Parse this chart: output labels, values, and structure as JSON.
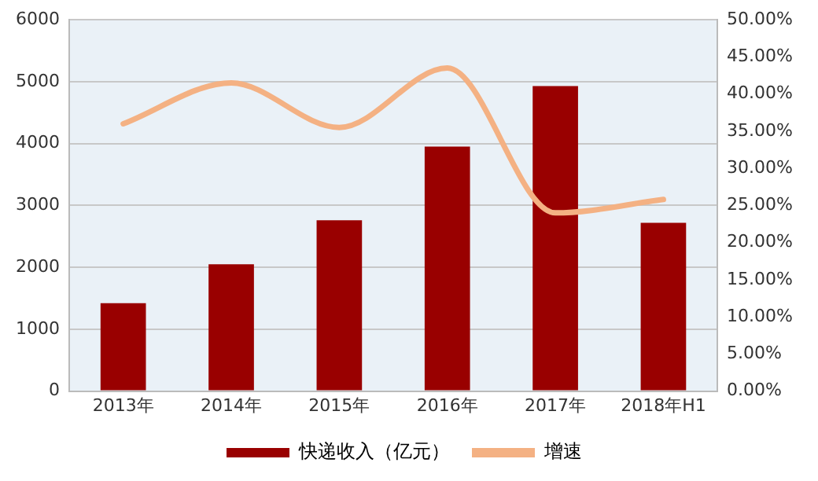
{
  "chart_data": {
    "type": "bar",
    "categories": [
      "2013年",
      "2014年",
      "2015年",
      "2016年",
      "2017年",
      "2018年H1"
    ],
    "series": [
      {
        "name": "快递收入（亿元）",
        "color": "#990000",
        "values": [
          1420,
          2050,
          2760,
          3950,
          4930,
          2720
        ]
      },
      {
        "name": "增速",
        "type": "line",
        "axis": "y2",
        "color": "#f4b183",
        "values": [
          36.0,
          41.5,
          35.5,
          43.5,
          24.0,
          25.8
        ]
      }
    ],
    "ylim": [
      0,
      6000
    ],
    "yticks": [
      0,
      1000,
      2000,
      3000,
      4000,
      5000,
      6000
    ],
    "y2lim": [
      0,
      50
    ],
    "y2ticks": [
      {
        "value": 0,
        "label": "0.00%"
      },
      {
        "value": 5,
        "label": "5.00%"
      },
      {
        "value": 10,
        "label": "10.00%"
      },
      {
        "value": 15,
        "label": "15.00%"
      },
      {
        "value": 20,
        "label": "20.00%"
      },
      {
        "value": 25,
        "label": "25.00%"
      },
      {
        "value": 30,
        "label": "30.00%"
      },
      {
        "value": 35,
        "label": "35.00%"
      },
      {
        "value": 40,
        "label": "40.00%"
      },
      {
        "value": 45,
        "label": "45.00%"
      },
      {
        "value": 50,
        "label": "50.00%"
      }
    ],
    "grid": "y",
    "legend": "bottom",
    "marker": "none"
  }
}
